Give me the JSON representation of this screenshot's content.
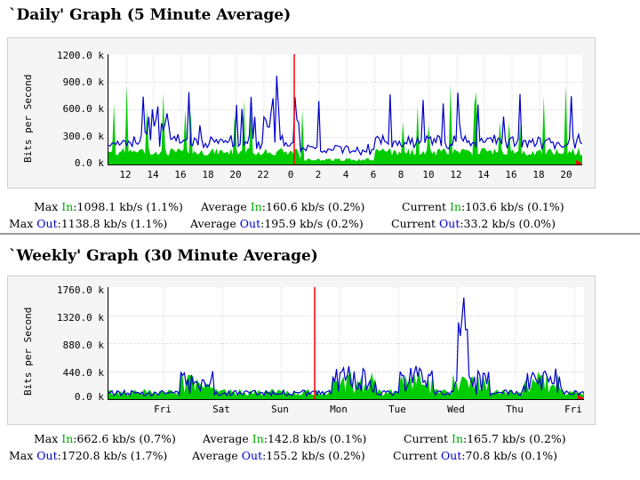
{
  "daily": {
    "title": "`Daily' Graph (5 Minute Average)",
    "ylabel": "Bits per Second",
    "yticks": [
      "1200.0 k",
      "900.0 k",
      "600.0 k",
      "300.0 k",
      "0.0 k"
    ],
    "xticks": [
      "12",
      "14",
      "16",
      "18",
      "20",
      "22",
      "0",
      "2",
      "4",
      "6",
      "8",
      "10",
      "12",
      "14",
      "16",
      "18",
      "20"
    ],
    "stats": {
      "max_in": "Max In:1098.1 kb/s (1.1%)",
      "avg_in": "Average In:160.6 kb/s (0.2%)",
      "cur_in": "Current In:103.6 kb/s (0.1%)",
      "max_out": "Max Out:1138.8 kb/s (1.1%)",
      "avg_out": "Average Out:195.9 kb/s (0.2%)",
      "cur_out": "Current Out:33.2 kb/s (0.0%)"
    }
  },
  "weekly": {
    "title": "`Weekly' Graph (30 Minute Average)",
    "ylabel": "Bits per Second",
    "yticks": [
      "1760.0 k",
      "1320.0 k",
      "880.0 k",
      "440.0 k",
      "0.0 k"
    ],
    "xticks": [
      "Fri",
      "Sat",
      "Sun",
      "Mon",
      "Tue",
      "Wed",
      "Thu",
      "Fri"
    ],
    "stats": {
      "max_in": "Max In:662.6 kb/s (0.7%)",
      "avg_in": "Average In:142.8 kb/s (0.1%)",
      "cur_in": "Current In:165.7 kb/s (0.2%)",
      "max_out": "Max Out:1720.8 kb/s (1.7%)",
      "avg_out": "Average Out:155.2 kb/s (0.2%)",
      "cur_out": "Current Out:70.8 kb/s (0.1%)"
    }
  },
  "colors": {
    "in": "#00cc00",
    "out": "#0000cc",
    "marker": "#ff0000",
    "grid": "#cccccc"
  }
}
